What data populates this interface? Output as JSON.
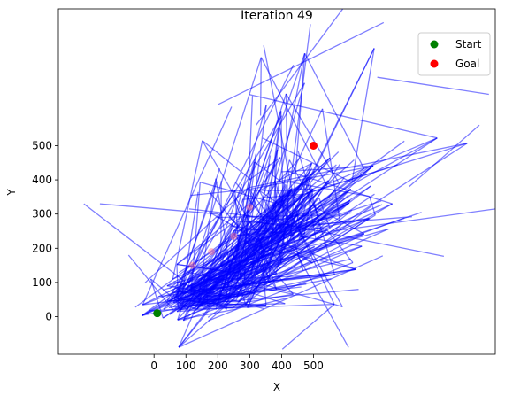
{
  "chart_data": {
    "type": "scatter",
    "title": "Iteration 49",
    "xlabel": "X",
    "ylabel": "Y",
    "xlim": [
      -300,
      1070
    ],
    "ylim": [
      -110,
      900
    ],
    "xticks": [
      0,
      100,
      200,
      300,
      400,
      500
    ],
    "yticks": [
      0,
      100,
      200,
      300,
      400,
      500
    ],
    "grid": false,
    "legend_position": "top-right",
    "series": [
      {
        "name": "Start",
        "color": "#008000",
        "marker": "circle",
        "points": [
          [
            10,
            10
          ]
        ]
      },
      {
        "name": "Goal",
        "color": "#ff0000",
        "marker": "circle",
        "points": [
          [
            500,
            500
          ]
        ]
      }
    ],
    "tree_edges": {
      "color": "#0000ff",
      "alpha": 0.5,
      "extent_x": [
        -220,
        1070
      ],
      "extent_y": [
        -95,
        910
      ],
      "density_center": [
        330,
        180
      ]
    },
    "faded_path_points": [
      [
        120,
        150
      ],
      [
        180,
        190
      ],
      [
        250,
        235
      ],
      [
        300,
        320
      ]
    ]
  }
}
